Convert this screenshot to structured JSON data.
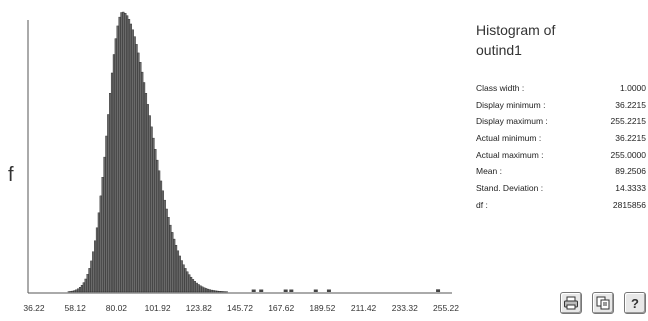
{
  "chart_data": {
    "type": "bar",
    "xlabel": "",
    "ylabel": "f",
    "xlim": [
      36.2215,
      255.2215
    ],
    "x_ticks": [
      "36.22",
      "58.12",
      "80.02",
      "101.92",
      "123.82",
      "145.72",
      "167.62",
      "189.52",
      "211.42",
      "233.32",
      "255.22"
    ],
    "bin_width": 1.0,
    "mean": 89.2506,
    "std": 14.3333,
    "outliers": [
      {
        "x": 153,
        "f": 0.003
      },
      {
        "x": 157,
        "f": 0.002
      },
      {
        "x": 170,
        "f": 0.004
      },
      {
        "x": 173,
        "f": 0.004
      },
      {
        "x": 186,
        "f": 0.005
      },
      {
        "x": 193,
        "f": 0.004
      },
      {
        "x": 251,
        "f": 0.006
      }
    ]
  },
  "panel": {
    "title_line1": "Histogram of",
    "title_line2": "outind1",
    "stats": [
      {
        "label": "Class width :",
        "value": "1.0000"
      },
      {
        "label": "Display minimum :",
        "value": "36.2215"
      },
      {
        "label": "Display maximum :",
        "value": "255.2215"
      },
      {
        "label": "Actual minimum :",
        "value": "36.2215"
      },
      {
        "label": "Actual maximum :",
        "value": "255.0000"
      },
      {
        "label": "Mean :",
        "value": "89.2506"
      },
      {
        "label": "Stand. Deviation :",
        "value": "14.3333"
      },
      {
        "label": "df :",
        "value": "2815856"
      }
    ]
  },
  "toolbar": {
    "icons": [
      "printer-icon",
      "copy-icon",
      "help-icon"
    ]
  }
}
